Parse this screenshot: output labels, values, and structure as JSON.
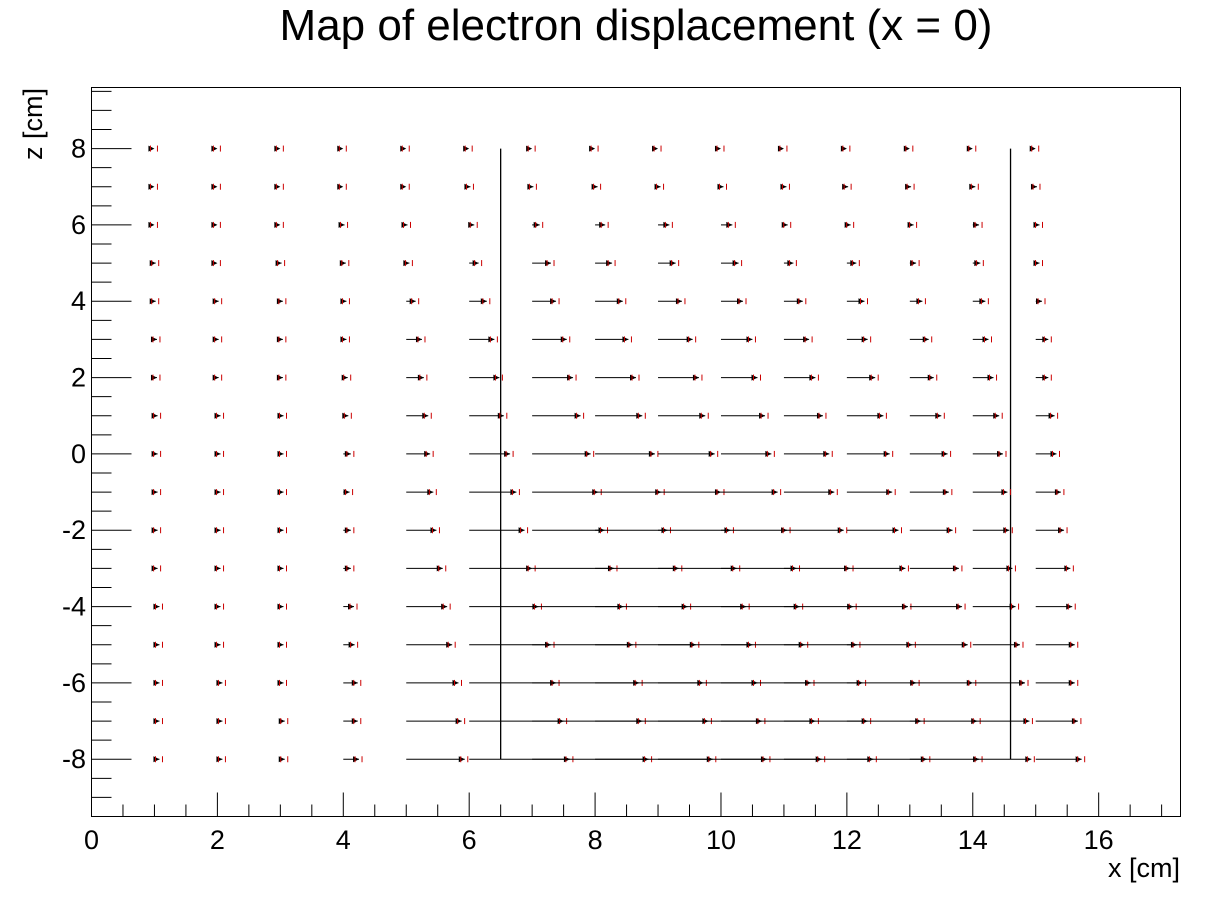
{
  "chart_data": {
    "type": "scatter",
    "subtype": "displacement-vector-map",
    "title": "Map of electron displacement (x = 0)",
    "xlabel": "x [cm]",
    "ylabel": "z [cm]",
    "xlim": [
      0,
      17.3
    ],
    "ylim": [
      -9.5,
      9.6
    ],
    "x_ticks": [
      0,
      2,
      4,
      6,
      8,
      10,
      12,
      14,
      16
    ],
    "y_ticks": [
      -8,
      -6,
      -4,
      -2,
      0,
      2,
      4,
      6,
      8
    ],
    "grid": false,
    "legend": "none",
    "colors": {
      "arrow": "#000000",
      "error_marker": "#cc0000"
    },
    "boundary_lines": [
      {
        "x": 6.5,
        "z_range": [
          -8,
          8
        ]
      },
      {
        "x": 14.6,
        "z_range": [
          -8,
          8
        ]
      }
    ],
    "x_points": [
      1,
      2,
      3,
      4,
      5,
      6,
      7,
      8,
      9,
      10,
      11,
      12,
      13,
      14,
      15
    ],
    "rows": [
      {
        "z": 8,
        "end_x": [
          1.0,
          2.0,
          3.0,
          4.0,
          5.0,
          6.0,
          7.0,
          8.0,
          9.0,
          10.0,
          11.0,
          12.0,
          13.0,
          14.0,
          15.0
        ]
      },
      {
        "z": 7,
        "end_x": [
          1.0,
          2.0,
          3.0,
          4.0,
          5.0,
          6.02,
          7.02,
          8.04,
          9.04,
          10.04,
          11.04,
          12.02,
          13.02,
          14.04,
          15.02
        ]
      },
      {
        "z": 6,
        "end_x": [
          1.0,
          2.0,
          3.0,
          4.02,
          5.02,
          6.08,
          7.12,
          8.16,
          9.18,
          10.18,
          11.06,
          12.06,
          13.06,
          14.1,
          15.06
        ]
      },
      {
        "z": 5,
        "end_x": [
          1.02,
          2.0,
          3.02,
          4.04,
          5.05,
          6.15,
          7.3,
          8.27,
          9.28,
          10.28,
          11.15,
          12.15,
          13.1,
          14.12,
          15.06
        ]
      },
      {
        "z": 4,
        "end_x": [
          1.02,
          2.02,
          3.04,
          4.05,
          5.15,
          6.28,
          7.38,
          8.44,
          9.38,
          10.35,
          11.3,
          12.28,
          13.2,
          14.2,
          15.1
        ]
      },
      {
        "z": 3,
        "end_x": [
          1.04,
          2.02,
          3.04,
          4.05,
          5.25,
          6.4,
          7.55,
          8.53,
          9.55,
          10.5,
          11.4,
          12.33,
          13.3,
          14.25,
          15.2
        ]
      },
      {
        "z": 2,
        "end_x": [
          1.04,
          2.02,
          3.04,
          4.07,
          5.28,
          6.48,
          7.65,
          8.65,
          9.65,
          10.58,
          11.5,
          12.45,
          13.38,
          14.33,
          15.2
        ]
      },
      {
        "z": 1,
        "end_x": [
          1.05,
          2.05,
          3.05,
          4.08,
          5.35,
          6.55,
          7.77,
          8.75,
          9.75,
          10.7,
          11.62,
          12.58,
          13.5,
          14.42,
          15.3
        ]
      },
      {
        "z": 0,
        "end_x": [
          1.05,
          2.05,
          3.05,
          4.12,
          5.38,
          6.65,
          7.93,
          8.95,
          9.9,
          10.8,
          11.72,
          12.68,
          13.6,
          14.48,
          15.33
        ]
      },
      {
        "z": -1,
        "end_x": [
          1.05,
          2.05,
          3.05,
          4.1,
          5.43,
          6.75,
          8.05,
          9.05,
          10.0,
          10.9,
          11.8,
          12.72,
          13.62,
          14.55,
          15.4
        ]
      },
      {
        "z": -2,
        "end_x": [
          1.05,
          2.05,
          3.05,
          4.12,
          5.48,
          6.88,
          8.15,
          9.15,
          10.15,
          11.05,
          11.95,
          12.82,
          13.68,
          14.58,
          15.45
        ]
      },
      {
        "z": -3,
        "end_x": [
          1.05,
          2.05,
          3.05,
          4.12,
          5.58,
          7.0,
          8.3,
          9.33,
          10.25,
          11.2,
          12.05,
          12.93,
          13.78,
          14.63,
          15.55
        ]
      },
      {
        "z": -4,
        "end_x": [
          1.08,
          2.05,
          3.05,
          4.17,
          5.65,
          7.1,
          8.45,
          9.47,
          10.4,
          11.25,
          12.1,
          12.97,
          13.83,
          14.68,
          15.58
        ]
      },
      {
        "z": -5,
        "end_x": [
          1.08,
          2.05,
          3.05,
          4.18,
          5.73,
          7.3,
          8.6,
          9.6,
          10.5,
          11.33,
          12.16,
          13.04,
          13.92,
          14.75,
          15.62
        ]
      },
      {
        "z": -6,
        "end_x": [
          1.08,
          2.08,
          3.05,
          4.23,
          5.83,
          7.38,
          8.7,
          9.72,
          10.58,
          11.43,
          12.25,
          13.1,
          14.0,
          14.83,
          15.62
        ]
      },
      {
        "z": -7,
        "end_x": [
          1.08,
          2.08,
          3.07,
          4.23,
          5.88,
          7.5,
          8.75,
          9.8,
          10.65,
          11.5,
          12.33,
          13.18,
          14.07,
          14.9,
          15.67
        ]
      },
      {
        "z": -8,
        "end_x": [
          1.08,
          2.08,
          3.07,
          4.25,
          5.93,
          7.6,
          8.85,
          9.87,
          10.73,
          11.6,
          12.42,
          13.27,
          14.1,
          14.93,
          15.73
        ]
      }
    ]
  }
}
